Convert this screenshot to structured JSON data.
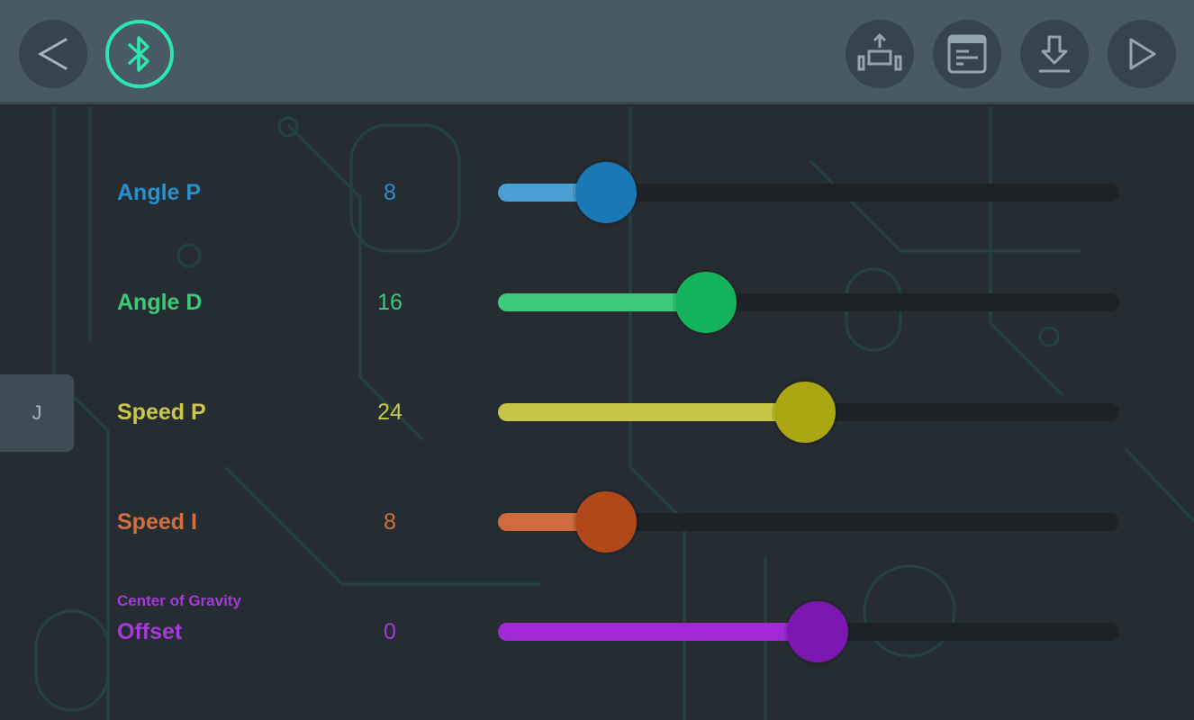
{
  "header": {
    "icons": [
      "back-icon",
      "bluetooth-icon",
      "robot-calibrate-icon",
      "console-icon",
      "download-icon",
      "play-icon"
    ],
    "bluetooth_color": "#2ee6b0"
  },
  "side_tab": {
    "label": "J"
  },
  "sliders": [
    {
      "label": "Angle P",
      "sublabel": "",
      "value": "8",
      "fill_fraction": 0.16,
      "color": "#2a8fcf",
      "fill_color": "#4aa0d4",
      "thumb_color": "#1a78b4"
    },
    {
      "label": "Angle D",
      "sublabel": "",
      "value": "16",
      "fill_fraction": 0.32,
      "color": "#3ec97a",
      "fill_color": "#3ec97a",
      "thumb_color": "#13b35c"
    },
    {
      "label": "Speed P",
      "sublabel": "",
      "value": "24",
      "fill_fraction": 0.48,
      "color": "#c9c84a",
      "fill_color": "#c6c545",
      "thumb_color": "#aaa612"
    },
    {
      "label": "Speed I",
      "sublabel": "",
      "value": "8",
      "fill_fraction": 0.16,
      "color": "#d0703f",
      "fill_color": "#cf6b3e",
      "thumb_color": "#b0481a"
    },
    {
      "label": "Offset",
      "sublabel": "Center of Gravity",
      "value": "0",
      "fill_fraction": 0.5,
      "color": "#a43ad8",
      "fill_color": "#a22ad6",
      "thumb_color": "#7b16b0"
    }
  ]
}
